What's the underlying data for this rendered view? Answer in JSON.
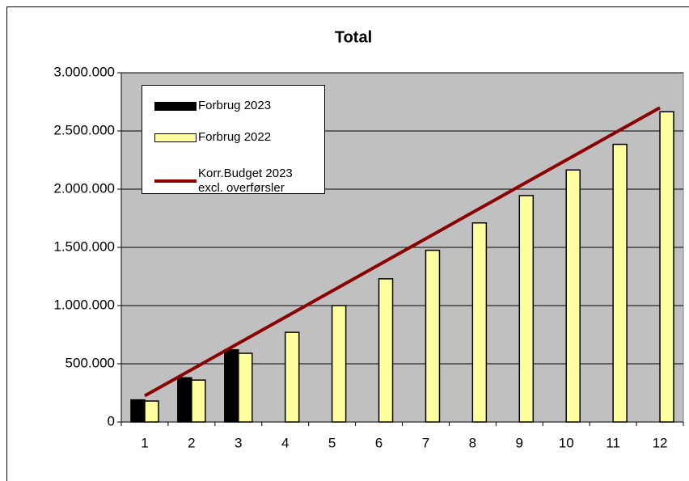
{
  "chart_data": {
    "type": "bar",
    "title": "Total",
    "categories": [
      "1",
      "2",
      "3",
      "4",
      "5",
      "6",
      "7",
      "8",
      "9",
      "10",
      "11",
      "12"
    ],
    "series": [
      {
        "name": "Forbrug 2023",
        "type": "bar",
        "color": "#000000",
        "values": [
          190000,
          380000,
          620000,
          null,
          null,
          null,
          null,
          null,
          null,
          null,
          null,
          null
        ]
      },
      {
        "name": "Forbrug 2022",
        "type": "bar",
        "color": "#ffffa0",
        "values": [
          180000,
          360000,
          590000,
          770000,
          1000000,
          1230000,
          1475000,
          1710000,
          1945000,
          2165000,
          2385000,
          2665000
        ]
      },
      {
        "name": "Korr.Budget 2023\nexcl. overførsler",
        "type": "line",
        "color": "#8b0000",
        "values": [
          225000,
          450000,
          675000,
          900000,
          1125000,
          1350000,
          1575000,
          1800000,
          2025000,
          2250000,
          2475000,
          2700000
        ]
      }
    ],
    "ylim": [
      0,
      3000000
    ],
    "yticks": [
      0,
      {
        "value": 500000,
        "label": "500.000"
      },
      {
        "value": 1000000,
        "label": "1.000.000"
      },
      {
        "value": 1500000,
        "label": "1.500.000"
      },
      {
        "value": 2000000,
        "label": "2.000.000"
      },
      {
        "value": 2500000,
        "label": "2.500.000"
      },
      {
        "value": 3000000,
        "label": "3.000.000"
      }
    ],
    "grid": true,
    "background": "#c0c0c0"
  }
}
